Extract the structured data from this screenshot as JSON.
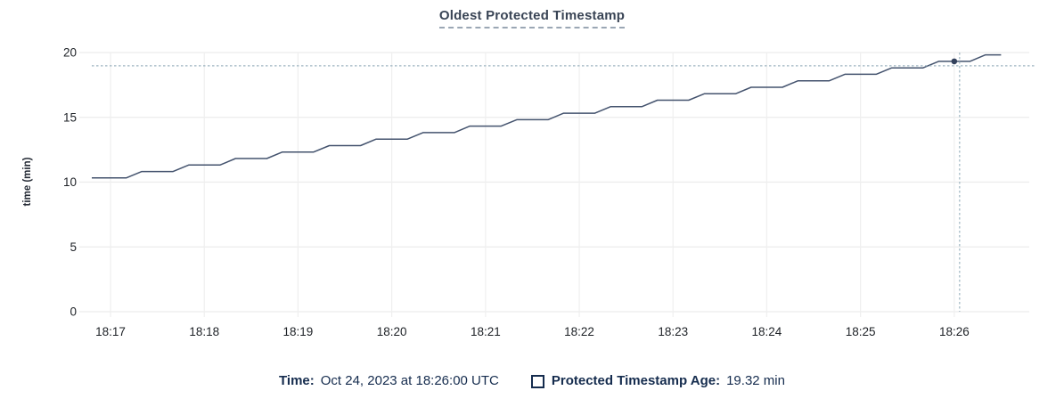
{
  "title": "Oldest Protected Timestamp",
  "colors": {
    "background": "#FFFFFF",
    "line": "#44536E",
    "dot": "#33415C",
    "crosshair": "#9DB4C0",
    "grid_horizontal": "#ECECEC",
    "grid_vertical": "#EFEFEF",
    "tick_text": "#1D2126",
    "axis_label_text": "#242A35",
    "title_text": "#394455",
    "title_underline": "#9BA7B4",
    "legend_text": "#152C4E"
  },
  "legend": {
    "time_label": "Time:",
    "time_value": "Oct 24, 2023 at 18:26:00 UTC",
    "series_label": "Protected Timestamp Age:",
    "series_value": "19.32 min",
    "swatch": "empty-square-checkbox"
  },
  "hover": {
    "time": "18:26:00",
    "value": 19.32
  },
  "chart_data": {
    "type": "line",
    "title": "Oldest Protected Timestamp",
    "xlabel": "",
    "ylabel": "time (min)",
    "ylim": [
      0,
      20
    ],
    "y_ticks": [
      0,
      5,
      10,
      15,
      20
    ],
    "x_ticks": [
      "18:17",
      "18:18",
      "18:19",
      "18:20",
      "18:21",
      "18:22",
      "18:23",
      "18:24",
      "18:25",
      "18:26"
    ],
    "x_range": [
      "18:16:48",
      "18:26:48"
    ],
    "grid": true,
    "legend_position": "bottom",
    "series": [
      {
        "name": "Protected Timestamp Age",
        "unit": "min",
        "x": [
          "18:16:48",
          "18:17:00",
          "18:17:10",
          "18:17:20",
          "18:17:30",
          "18:17:40",
          "18:17:50",
          "18:18:00",
          "18:18:10",
          "18:18:20",
          "18:18:30",
          "18:18:40",
          "18:18:50",
          "18:19:00",
          "18:19:10",
          "18:19:20",
          "18:19:30",
          "18:19:40",
          "18:19:50",
          "18:20:00",
          "18:20:10",
          "18:20:20",
          "18:20:30",
          "18:20:40",
          "18:20:50",
          "18:21:00",
          "18:21:10",
          "18:21:20",
          "18:21:30",
          "18:21:40",
          "18:21:50",
          "18:22:00",
          "18:22:10",
          "18:22:20",
          "18:22:30",
          "18:22:40",
          "18:22:50",
          "18:23:00",
          "18:23:10",
          "18:23:20",
          "18:23:30",
          "18:23:40",
          "18:23:50",
          "18:24:00",
          "18:24:10",
          "18:24:20",
          "18:24:30",
          "18:24:40",
          "18:24:50",
          "18:25:00",
          "18:25:10",
          "18:25:20",
          "18:25:30",
          "18:25:40",
          "18:25:50",
          "18:26:00",
          "18:26:10",
          "18:26:20",
          "18:26:30"
        ],
        "y": [
          10.32,
          10.32,
          10.32,
          10.82,
          10.82,
          10.82,
          11.32,
          11.32,
          11.32,
          11.82,
          11.82,
          11.82,
          12.32,
          12.32,
          12.32,
          12.82,
          12.82,
          12.82,
          13.32,
          13.32,
          13.32,
          13.82,
          13.82,
          13.82,
          14.32,
          14.32,
          14.32,
          14.82,
          14.82,
          14.82,
          15.32,
          15.32,
          15.32,
          15.82,
          15.82,
          15.82,
          16.32,
          16.32,
          16.32,
          16.82,
          16.82,
          16.82,
          17.32,
          17.32,
          17.32,
          17.82,
          17.82,
          17.82,
          18.32,
          18.32,
          18.32,
          18.82,
          18.82,
          18.82,
          19.32,
          19.32,
          19.32,
          19.82,
          19.82
        ]
      }
    ]
  }
}
